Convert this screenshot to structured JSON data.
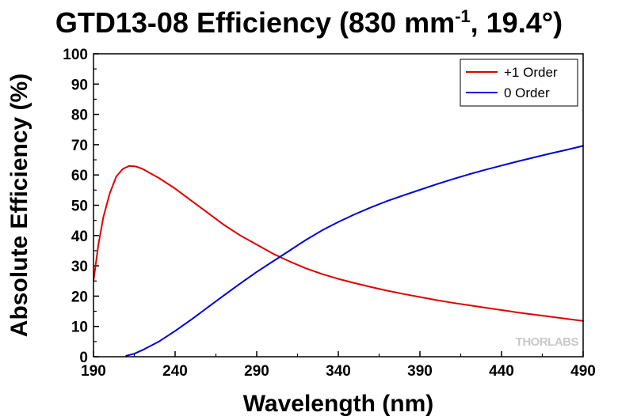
{
  "title": {
    "main": "GTD13-08 Efficiency (830 mm",
    "superscript": "-1",
    "suffix": ", 19.4°)"
  },
  "watermark": "THORLABS",
  "chart_data": {
    "type": "line",
    "title": "GTD13-08 Efficiency (830 mm-1, 19.4°)",
    "xlabel": "Wavelength (nm)",
    "ylabel": "Absolute Efficiency (%)",
    "xlim": [
      190,
      490
    ],
    "ylim": [
      0,
      100
    ],
    "xticks": [
      190,
      240,
      290,
      340,
      390,
      440,
      490
    ],
    "yticks": [
      0,
      10,
      20,
      30,
      40,
      50,
      60,
      70,
      80,
      90,
      100
    ],
    "grid": false,
    "legend_position": "top-right",
    "series": [
      {
        "name": "+1 Order",
        "color": "#e00000",
        "x": [
          190,
          193,
          196,
          200,
          204,
          208,
          212,
          216,
          220,
          225,
          230,
          240,
          250,
          260,
          270,
          280,
          290,
          300,
          310,
          320,
          330,
          340,
          350,
          360,
          370,
          380,
          390,
          400,
          410,
          420,
          430,
          440,
          450,
          460,
          470,
          480,
          490
        ],
        "y": [
          25,
          37,
          46,
          54,
          59.5,
          62,
          63,
          62.8,
          62,
          60.5,
          59,
          55.5,
          51.5,
          47.5,
          43.5,
          40,
          37,
          34,
          31.5,
          29.2,
          27.3,
          25.7,
          24.3,
          23,
          21.8,
          20.7,
          19.7,
          18.7,
          17.8,
          17,
          16.2,
          15.4,
          14.6,
          13.9,
          13.2,
          12.5,
          11.8
        ]
      },
      {
        "name": "0 Order",
        "color": "#0000e0",
        "x": [
          210,
          215,
          220,
          230,
          240,
          250,
          260,
          270,
          280,
          290,
          300,
          310,
          320,
          330,
          340,
          350,
          360,
          370,
          380,
          390,
          400,
          410,
          420,
          430,
          440,
          450,
          460,
          470,
          480,
          490
        ],
        "y": [
          0.3,
          1,
          2.2,
          5,
          8.5,
          12.3,
          16.3,
          20.3,
          24.2,
          28,
          31.5,
          35,
          38.5,
          41.7,
          44.5,
          47,
          49.3,
          51.4,
          53.3,
          55.1,
          56.9,
          58.6,
          60.2,
          61.7,
          63.1,
          64.5,
          65.8,
          67.1,
          68.3,
          69.6
        ]
      }
    ]
  }
}
